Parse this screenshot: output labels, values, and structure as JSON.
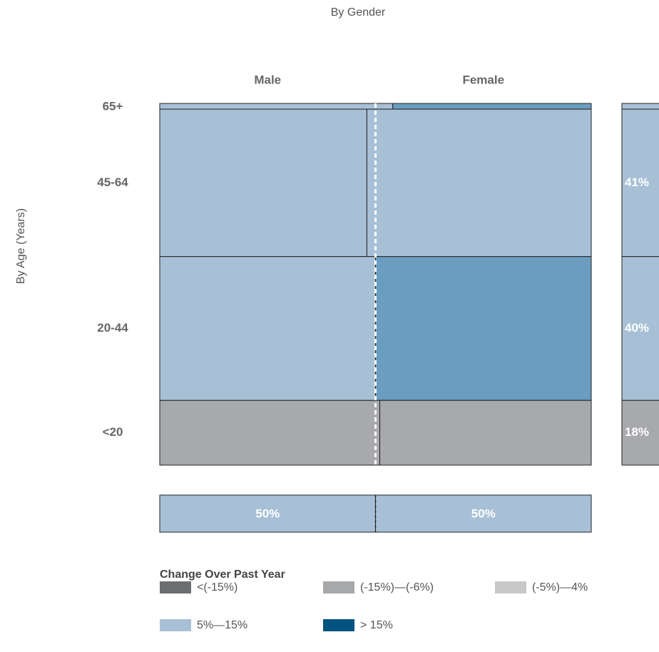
{
  "chart_data": {
    "type": "mosaic",
    "title": "By Gender",
    "y_label": "By Age (Years)",
    "columns": [
      "Male",
      "Female"
    ],
    "rows": [
      {
        "label": "65+",
        "share": 1.6,
        "share_label": null,
        "total_color": "#a7c0d6",
        "cells": [
          {
            "value": 54,
            "color": "#a7c0d6"
          },
          {
            "value": 46,
            "color": "#6a9dbf"
          }
        ]
      },
      {
        "label": "45-64",
        "share": 41,
        "share_label": "41%",
        "total_color": "#a7c0d6",
        "cells": [
          {
            "value": 48,
            "color": "#a7c0d6"
          },
          {
            "value": 52,
            "color": "#a7c0d6"
          }
        ]
      },
      {
        "label": "20-44",
        "share": 40,
        "share_label": "40%",
        "total_color": "#a7c0d6",
        "cells": [
          {
            "value": 50,
            "color": "#a7c0d6"
          },
          {
            "value": 50,
            "color": "#6a9dbf"
          }
        ]
      },
      {
        "label": "<20",
        "share": 18,
        "share_label": "18%",
        "total_color": "#a8a9ac",
        "cells": [
          {
            "value": 51,
            "color": "#a8a9ac"
          },
          {
            "value": 49,
            "color": "#a8a9ac"
          }
        ]
      }
    ],
    "gender_totals": {
      "values": [
        50,
        50
      ],
      "value_labels": [
        "50%",
        "50%"
      ],
      "color": "#a7c0d6"
    },
    "legend": {
      "title": "Change Over Past Year",
      "items": [
        {
          "name": "<(-15%)",
          "color": "#6d6e71"
        },
        {
          "name": "(-15%)—(-6%)",
          "color": "#a7a8aa"
        },
        {
          "name": "(-5%)—4%",
          "color": "#c8c8c8"
        },
        {
          "name": "5%—15%",
          "color": "#a7c0d6"
        },
        {
          "name": "> 15%",
          "color": "#00547f"
        }
      ]
    }
  }
}
